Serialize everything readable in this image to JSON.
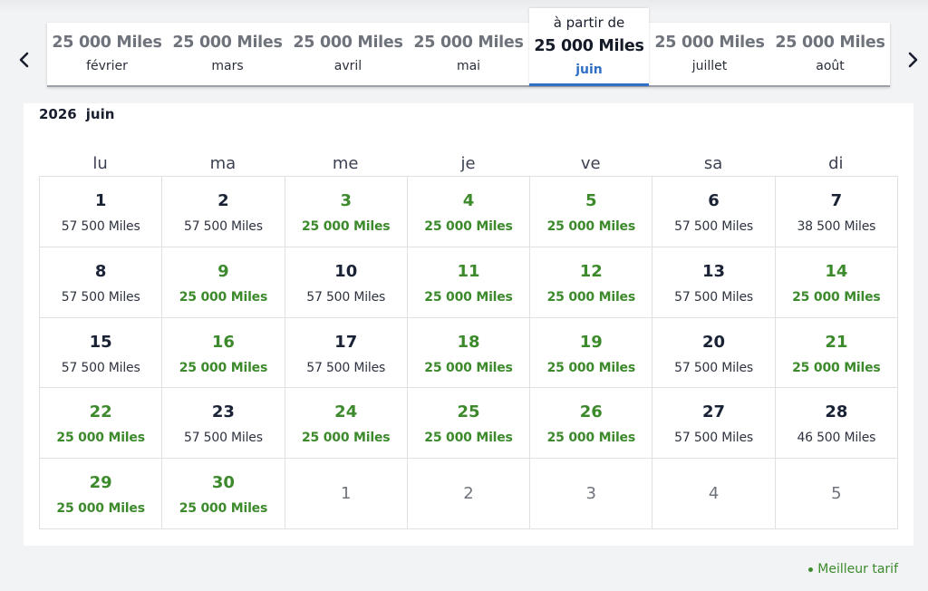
{
  "colors": {
    "best_fare": "#3c8a2c",
    "active_tab": "#2f6fc6",
    "text": "#1a1f2e"
  },
  "nav": {
    "prev_icon": "chevron-left-icon",
    "next_icon": "chevron-right-icon"
  },
  "month_strip": {
    "active_prefix": "à partir de",
    "months": [
      {
        "price": "25 000  Miles",
        "name": "février"
      },
      {
        "price": "25 000  Miles",
        "name": "mars"
      },
      {
        "price": "25 000  Miles",
        "name": "avril"
      },
      {
        "price": "25 000  Miles",
        "name": "mai"
      },
      {
        "price": "25 000  Miles",
        "name": "juin"
      },
      {
        "price": "25 000  Miles",
        "name": "juillet"
      },
      {
        "price": "25 000  Miles",
        "name": "août"
      }
    ],
    "active_index": 4
  },
  "calendar": {
    "year": "2026",
    "month": "juin",
    "weekdays": [
      "lu",
      "ma",
      "me",
      "je",
      "ve",
      "sa",
      "di"
    ],
    "days": [
      {
        "day": "1",
        "miles": "57 500  Miles",
        "best": false
      },
      {
        "day": "2",
        "miles": "57 500  Miles",
        "best": false
      },
      {
        "day": "3",
        "miles": "25 000  Miles",
        "best": true
      },
      {
        "day": "4",
        "miles": "25 000  Miles",
        "best": true
      },
      {
        "day": "5",
        "miles": "25 000  Miles",
        "best": true
      },
      {
        "day": "6",
        "miles": "57 500  Miles",
        "best": false
      },
      {
        "day": "7",
        "miles": "38 500  Miles",
        "best": false
      },
      {
        "day": "8",
        "miles": "57 500  Miles",
        "best": false
      },
      {
        "day": "9",
        "miles": "25 000  Miles",
        "best": true
      },
      {
        "day": "10",
        "miles": "57 500  Miles",
        "best": false
      },
      {
        "day": "11",
        "miles": "25 000  Miles",
        "best": true
      },
      {
        "day": "12",
        "miles": "25 000  Miles",
        "best": true
      },
      {
        "day": "13",
        "miles": "57 500  Miles",
        "best": false
      },
      {
        "day": "14",
        "miles": "25 000  Miles",
        "best": true
      },
      {
        "day": "15",
        "miles": "57 500  Miles",
        "best": false
      },
      {
        "day": "16",
        "miles": "25 000  Miles",
        "best": true
      },
      {
        "day": "17",
        "miles": "57 500  Miles",
        "best": false
      },
      {
        "day": "18",
        "miles": "25 000  Miles",
        "best": true
      },
      {
        "day": "19",
        "miles": "25 000  Miles",
        "best": true
      },
      {
        "day": "20",
        "miles": "57 500  Miles",
        "best": false
      },
      {
        "day": "21",
        "miles": "25 000  Miles",
        "best": true
      },
      {
        "day": "22",
        "miles": "25 000  Miles",
        "best": true
      },
      {
        "day": "23",
        "miles": "57 500  Miles",
        "best": false
      },
      {
        "day": "24",
        "miles": "25 000  Miles",
        "best": true
      },
      {
        "day": "25",
        "miles": "25 000  Miles",
        "best": true
      },
      {
        "day": "26",
        "miles": "25 000  Miles",
        "best": true
      },
      {
        "day": "27",
        "miles": "57 500  Miles",
        "best": false
      },
      {
        "day": "28",
        "miles": "46 500  Miles",
        "best": false
      },
      {
        "day": "29",
        "miles": "25 000  Miles",
        "best": true
      },
      {
        "day": "30",
        "miles": "25 000  Miles",
        "best": true
      }
    ],
    "trailing_days": [
      "1",
      "2",
      "3",
      "4",
      "5"
    ]
  },
  "legend": {
    "label": "Meilleur tarif"
  }
}
